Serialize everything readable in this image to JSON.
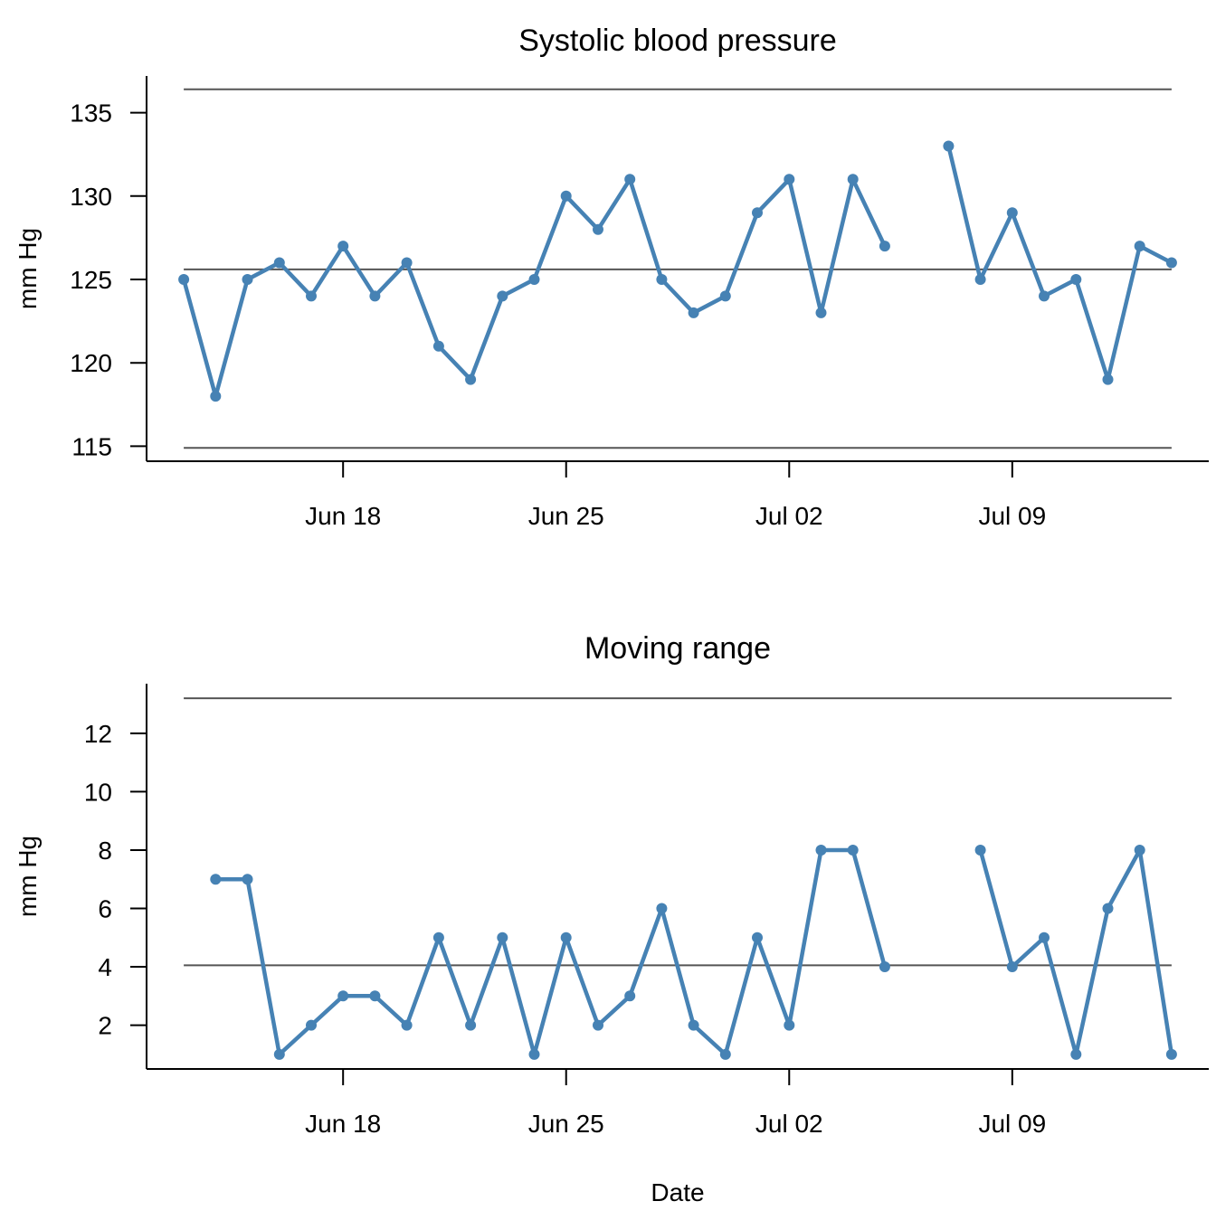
{
  "chart_data": [
    {
      "type": "line",
      "title": "Systolic blood pressure",
      "ylabel": "mm Hg",
      "xlabel": "",
      "ylim": [
        114.1,
        137.2
      ],
      "xlim": [
        "2023-06-11T20:00",
        "2023-07-15T04:00"
      ],
      "yticks": [
        115,
        120,
        125,
        130,
        135
      ],
      "xticks": [
        {
          "date": "2023-06-18",
          "label": "Jun 18"
        },
        {
          "date": "2023-06-25",
          "label": "Jun 25"
        },
        {
          "date": "2023-07-02",
          "label": "Jul 02"
        },
        {
          "date": "2023-07-09",
          "label": "Jul 09"
        }
      ],
      "grid": false,
      "reference_lines": [
        {
          "name": "upper-limit",
          "y": 136.4
        },
        {
          "name": "center-line",
          "y": 125.6
        },
        {
          "name": "lower-limit",
          "y": 114.9
        }
      ],
      "series": [
        {
          "color": "#4682b4",
          "x": [
            "2023-06-13",
            "2023-06-14",
            "2023-06-15",
            "2023-06-16",
            "2023-06-17",
            "2023-06-18",
            "2023-06-19",
            "2023-06-20",
            "2023-06-21",
            "2023-06-22",
            "2023-06-23",
            "2023-06-24",
            "2023-06-25",
            "2023-06-26",
            "2023-06-27",
            "2023-06-28",
            "2023-06-29",
            "2023-06-30",
            "2023-07-01",
            "2023-07-02",
            "2023-07-03",
            "2023-07-04",
            "2023-07-05",
            "2023-07-06",
            "2023-07-07",
            "2023-07-08",
            "2023-07-09",
            "2023-07-10",
            "2023-07-11",
            "2023-07-12",
            "2023-07-13",
            "2023-07-14"
          ],
          "y": [
            125,
            118,
            125,
            126,
            124,
            127,
            124,
            126,
            121,
            119,
            124,
            125,
            130,
            128,
            131,
            125,
            123,
            124,
            129,
            131,
            123,
            131,
            127,
            null,
            133,
            125,
            129,
            124,
            125,
            119,
            127,
            126
          ]
        }
      ]
    },
    {
      "type": "line",
      "title": "Moving range",
      "ylabel": "mm Hg",
      "xlabel": "Date",
      "ylim": [
        0.5,
        13.7
      ],
      "xlim": [
        "2023-06-11T20:00",
        "2023-07-15T04:00"
      ],
      "yticks": [
        2,
        4,
        6,
        8,
        10,
        12
      ],
      "xticks": [
        {
          "date": "2023-06-18",
          "label": "Jun 18"
        },
        {
          "date": "2023-06-25",
          "label": "Jun 25"
        },
        {
          "date": "2023-07-02",
          "label": "Jul 02"
        },
        {
          "date": "2023-07-09",
          "label": "Jul 09"
        }
      ],
      "grid": false,
      "reference_lines": [
        {
          "name": "upper-limit",
          "y": 13.2
        },
        {
          "name": "center-line",
          "y": 4.05
        }
      ],
      "series": [
        {
          "color": "#4682b4",
          "x": [
            "2023-06-14",
            "2023-06-15",
            "2023-06-16",
            "2023-06-17",
            "2023-06-18",
            "2023-06-19",
            "2023-06-20",
            "2023-06-21",
            "2023-06-22",
            "2023-06-23",
            "2023-06-24",
            "2023-06-25",
            "2023-06-26",
            "2023-06-27",
            "2023-06-28",
            "2023-06-29",
            "2023-06-30",
            "2023-07-01",
            "2023-07-02",
            "2023-07-03",
            "2023-07-04",
            "2023-07-05",
            "2023-07-06",
            "2023-07-07",
            "2023-07-08",
            "2023-07-09",
            "2023-07-10",
            "2023-07-11",
            "2023-07-12",
            "2023-07-13",
            "2023-07-14"
          ],
          "y": [
            7,
            7,
            1,
            2,
            3,
            3,
            2,
            5,
            2,
            5,
            1,
            5,
            2,
            3,
            6,
            2,
            1,
            5,
            2,
            8,
            8,
            4,
            null,
            null,
            8,
            4,
            5,
            1,
            6,
            8,
            1
          ]
        }
      ]
    }
  ]
}
